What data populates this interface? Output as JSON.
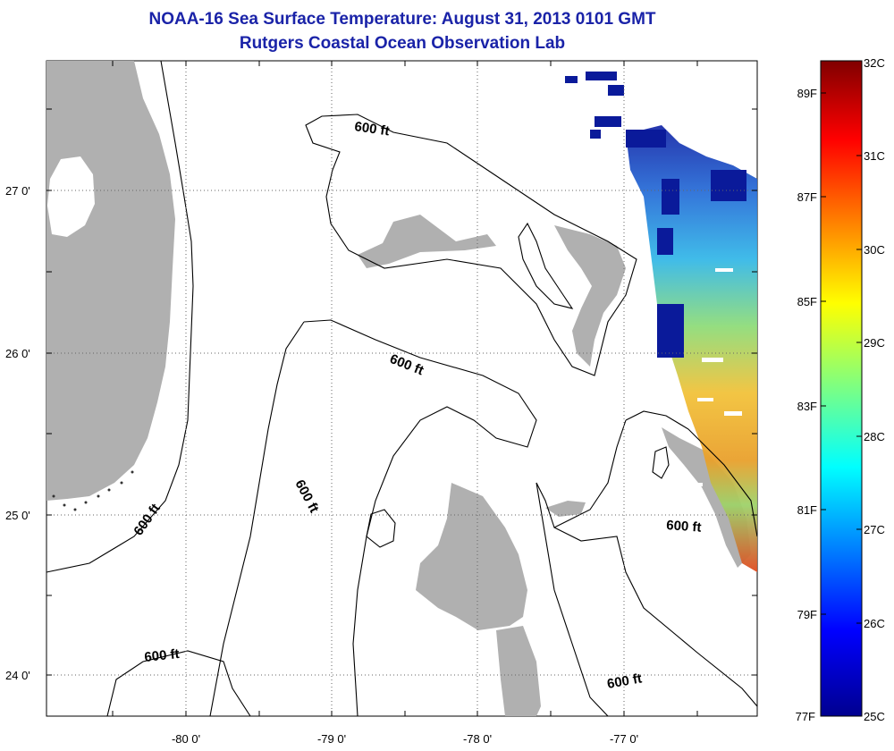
{
  "header": {
    "title": "NOAA-16 Sea Surface Temperature:  August 31, 2013 0101 GMT",
    "subtitle": "Rutgers Coastal Ocean Observation Lab"
  },
  "map": {
    "lat_labels": [
      "27 0'",
      "26 0'",
      "25 0'",
      "24 0'"
    ],
    "lon_labels": [
      "-80 0'",
      "-79 0'",
      "-78 0'",
      "-77 0'"
    ],
    "contour_labels": [
      "600 ft",
      "600 ft",
      "600 ft",
      "600 ft",
      "600 ft",
      "600 ft"
    ],
    "land_color": "#b0b0b0",
    "cloud_mask_color": "#ffffff"
  },
  "colorbar": {
    "celsius_labels": [
      "32C",
      "31C",
      "30C",
      "29C",
      "28C",
      "27C",
      "26C",
      "25C"
    ],
    "fahrenheit_labels": [
      "89F",
      "87F",
      "85F",
      "83F",
      "81F",
      "79F",
      "77F"
    ],
    "colors": [
      "#800000",
      "#ff0000",
      "#ffff00",
      "#00ffff",
      "#0000ff",
      "#00008f"
    ]
  }
}
